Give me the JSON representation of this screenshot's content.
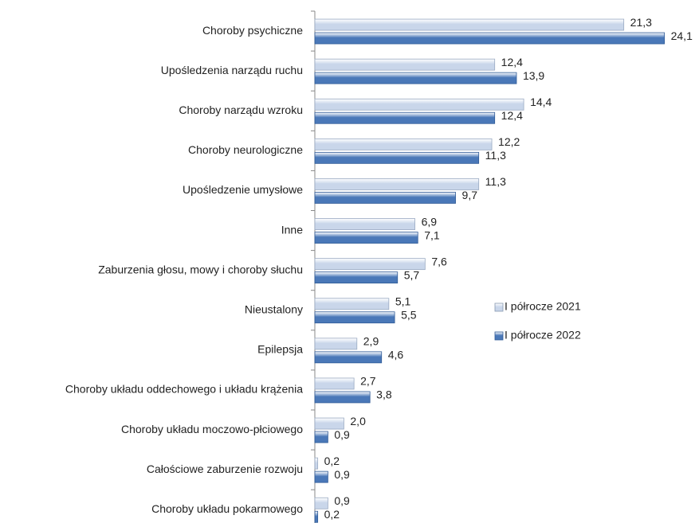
{
  "chart_data": {
    "type": "bar",
    "orientation": "horizontal",
    "categories": [
      "Choroby psychiczne",
      "Upośledzenia narządu ruchu",
      "Choroby narządu wzroku",
      "Choroby neurologiczne",
      "Upośledzenie umysłowe",
      "Inne",
      "Zaburzenia głosu, mowy i choroby słuchu",
      "Nieustalony",
      "Epilepsja",
      "Choroby układu oddechowego i układu krążenia",
      "Choroby układu moczowo-płciowego",
      "Całościowe zaburzenie rozwoju",
      "Choroby układu pokarmowego"
    ],
    "series": [
      {
        "name": "I półrocze 2021",
        "color": "#c9d6ea",
        "values": [
          21.3,
          12.4,
          14.4,
          12.2,
          11.3,
          6.9,
          7.6,
          5.1,
          2.9,
          2.7,
          2.0,
          0.2,
          0.9
        ],
        "value_labels": [
          "21,3",
          "12,4",
          "14,4",
          "12,2",
          "11,3",
          "6,9",
          "7,6",
          "5,1",
          "2,9",
          "2,7",
          "2,0",
          "0,2",
          "0,9"
        ]
      },
      {
        "name": "I półrocze 2022",
        "color": "#4a78b8",
        "values": [
          24.1,
          13.9,
          12.4,
          11.3,
          9.7,
          7.1,
          5.7,
          5.5,
          4.6,
          3.8,
          0.9,
          0.9,
          0.2
        ],
        "value_labels": [
          "24,1",
          "13,9",
          "12,4",
          "11,3",
          "9,7",
          "7,1",
          "5,7",
          "5,5",
          "4,6",
          "3,8",
          "0,9",
          "0,9",
          "0,2"
        ]
      }
    ],
    "xlim": [
      0,
      25
    ],
    "legend": "right"
  }
}
